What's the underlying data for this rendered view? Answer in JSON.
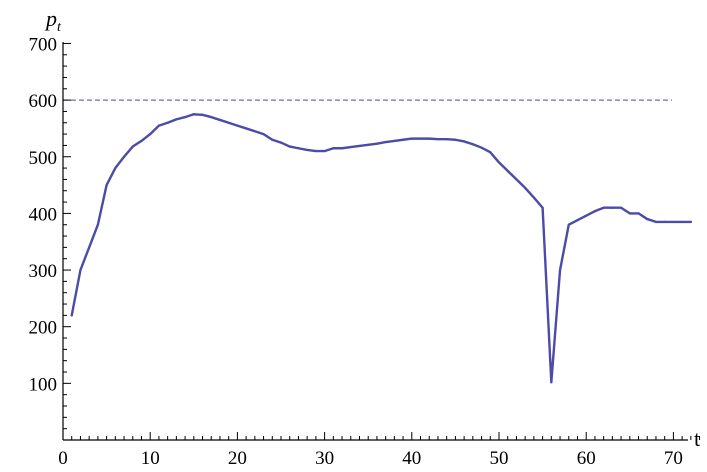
{
  "chart_data": {
    "type": "line",
    "xlabel": "t",
    "ylabel": "p",
    "ylabel_subscript": "t",
    "xlim": [
      0,
      73
    ],
    "ylim": [
      0,
      700
    ],
    "x_ticks": [
      0,
      10,
      20,
      30,
      40,
      50,
      60,
      70
    ],
    "y_ticks": [
      100,
      200,
      300,
      400,
      500,
      600,
      700
    ],
    "grid": false,
    "reference_line": {
      "y": 600,
      "style": "dashed"
    },
    "colors": {
      "series": "#4b4ba8",
      "reference": "#4b4ba8",
      "axis": "#000000"
    },
    "series": [
      {
        "x": [
          1,
          2,
          3,
          4,
          5,
          6,
          7,
          8,
          9,
          10,
          11,
          12,
          13,
          14,
          15,
          16,
          17,
          18,
          19,
          20,
          21,
          22,
          23,
          24,
          25,
          26,
          27,
          28,
          29,
          30,
          31,
          32,
          33,
          34,
          35,
          36,
          37,
          38,
          39,
          40,
          41,
          42,
          43,
          44,
          45,
          46,
          47,
          48,
          49,
          50,
          51,
          52,
          53,
          54,
          55,
          56,
          57,
          58,
          59,
          60,
          61,
          62,
          63,
          64,
          65,
          66,
          67,
          68,
          69,
          70,
          71,
          72
        ],
        "values": [
          220,
          300,
          340,
          380,
          450,
          480,
          500,
          518,
          528,
          540,
          555,
          560,
          566,
          570,
          575,
          574,
          570,
          565,
          560,
          555,
          550,
          545,
          540,
          530,
          525,
          518,
          515,
          512,
          510,
          510,
          515,
          515,
          517,
          519,
          521,
          523,
          526,
          528,
          530,
          532,
          532,
          532,
          531,
          531,
          530,
          527,
          522,
          516,
          508,
          490,
          475,
          460,
          445,
          428,
          410,
          102,
          300,
          380,
          388,
          396,
          404,
          410,
          410,
          410,
          400,
          400,
          390,
          385,
          385,
          385,
          385,
          385
        ]
      }
    ]
  }
}
